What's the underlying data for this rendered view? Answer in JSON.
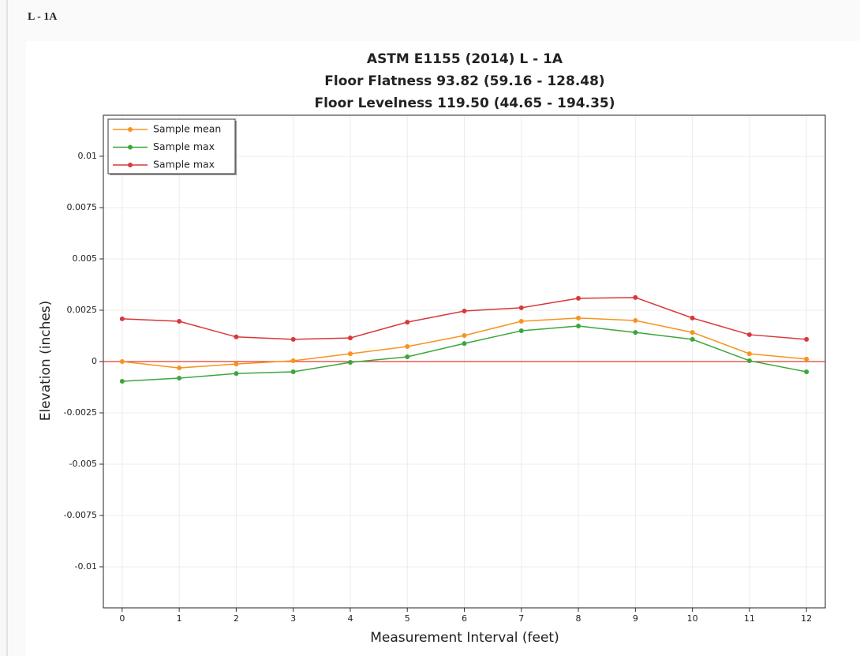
{
  "header": {
    "title": "L - 1A"
  },
  "chart_data": {
    "type": "line",
    "title_lines": [
      "ASTM E1155 (2014) L - 1A",
      "Floor Flatness 93.82 (59.16 - 128.48)",
      "Floor Levelness 119.50 (44.65 - 194.35)"
    ],
    "x_label": "Measurement Interval (feet)",
    "y_label": "Elevation (inches)",
    "x": [
      0,
      1,
      2,
      3,
      4,
      5,
      6,
      7,
      8,
      9,
      10,
      11,
      12
    ],
    "xlim": [
      -0.33,
      12.33
    ],
    "xticks": [
      0,
      1,
      2,
      3,
      4,
      5,
      6,
      7,
      8,
      9,
      10,
      11,
      12
    ],
    "ylim": [
      -0.012,
      0.012
    ],
    "yticks": [
      0.01,
      0.0075,
      0.005,
      0.0025,
      0,
      -0.0025,
      -0.005,
      -0.0075,
      -0.01
    ],
    "grid": true,
    "legend": "top-left",
    "reference_line": {
      "value": 0,
      "color": "#e8392a"
    },
    "series": [
      {
        "name": "Sample mean",
        "color": "#f7931e",
        "values": [
          0,
          -0.00031,
          -0.00012,
          4e-05,
          0.00038,
          0.00073,
          0.00127,
          0.00196,
          0.00212,
          0.002,
          0.00142,
          0.00038,
          0.00012
        ]
      },
      {
        "name": "Sample max",
        "color": "#3ca63c",
        "values": [
          -0.00096,
          -0.00081,
          -0.00058,
          -0.0005,
          -4e-05,
          0.00023,
          0.00088,
          0.0015,
          0.00173,
          0.00142,
          0.00108,
          4e-05,
          -0.0005
        ]
      },
      {
        "name": "Sample max",
        "color": "#d9383a",
        "values": [
          0.00208,
          0.00196,
          0.0012,
          0.00108,
          0.00115,
          0.00192,
          0.00246,
          0.00262,
          0.00308,
          0.00312,
          0.00212,
          0.00131,
          0.00108
        ]
      }
    ]
  }
}
